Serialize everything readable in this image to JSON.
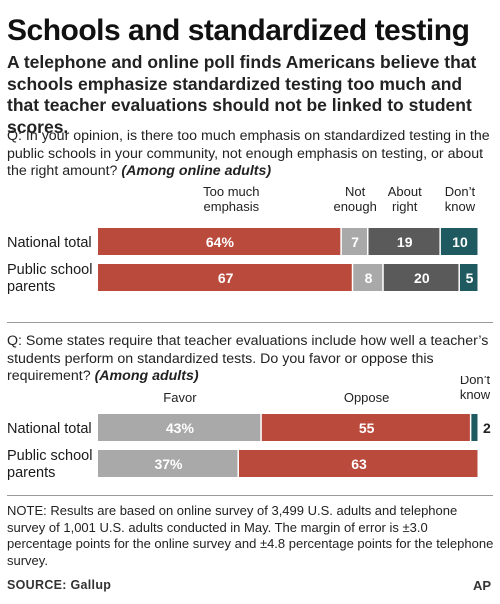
{
  "title": "Schools and standardized testing",
  "subtitle": "A telephone and online poll finds Americans believe that schools emphasize standardized testing too much and that teacher evaluations should not be linked to student scores.",
  "questions": [
    {
      "text": "Q: In your opinion, is there too much emphasis on standardized testing in the public schools in your community, not enough emphasis on testing, or about the right amount?",
      "qualifier": "(Among online adults)"
    },
    {
      "text": "Q: Some states require that teacher evaluations include how well a teacher’s students perform on standardized tests. Do you favor or oppose this requirement?",
      "qualifier": "(Among adults)"
    }
  ],
  "colors": {
    "red": "#b94a3c",
    "light_gray": "#a9a9a9",
    "dark_gray": "#5a5a5a",
    "teal": "#1f5a60"
  },
  "chart_data": [
    {
      "type": "bar",
      "orientation": "horizontal",
      "stacked": true,
      "ylim": [
        0,
        100
      ],
      "categories": [
        "National total",
        "Public school parents"
      ],
      "series": [
        {
          "name": "Too much emphasis",
          "values": [
            64,
            67
          ],
          "labels": [
            "64%",
            "67"
          ],
          "color": "#b94a3c"
        },
        {
          "name": "Not enough",
          "values": [
            7,
            8
          ],
          "labels": [
            "7",
            "8"
          ],
          "color": "#a9a9a9"
        },
        {
          "name": "About right",
          "values": [
            19,
            20
          ],
          "labels": [
            "19",
            "20"
          ],
          "color": "#5a5a5a"
        },
        {
          "name": "Don’t know",
          "values": [
            10,
            5
          ],
          "labels": [
            "10",
            "5"
          ],
          "color": "#1f5a60"
        }
      ]
    },
    {
      "type": "bar",
      "orientation": "horizontal",
      "stacked": true,
      "ylim": [
        0,
        100
      ],
      "categories": [
        "National total",
        "Public school parents"
      ],
      "series": [
        {
          "name": "Favor",
          "values": [
            43,
            37
          ],
          "labels": [
            "43%",
            "37%"
          ],
          "color": "#a9a9a9"
        },
        {
          "name": "Oppose",
          "values": [
            55,
            63
          ],
          "labels": [
            "55",
            "63"
          ],
          "color": "#b94a3c"
        },
        {
          "name": "Don’t know",
          "values": [
            2,
            0
          ],
          "labels": [
            "2",
            ""
          ],
          "color": "#1f5a60"
        }
      ]
    }
  ],
  "note": "NOTE: Results are based on online survey of 3,499 U.S. adults and telephone survey of 1,001 U.S. adults conducted in May. The margin of error is ±3.0 percentage points for the online survey and ±4.8 percentage points for the telephone survey.",
  "source": "SOURCE: Gallup",
  "credit": "AP"
}
